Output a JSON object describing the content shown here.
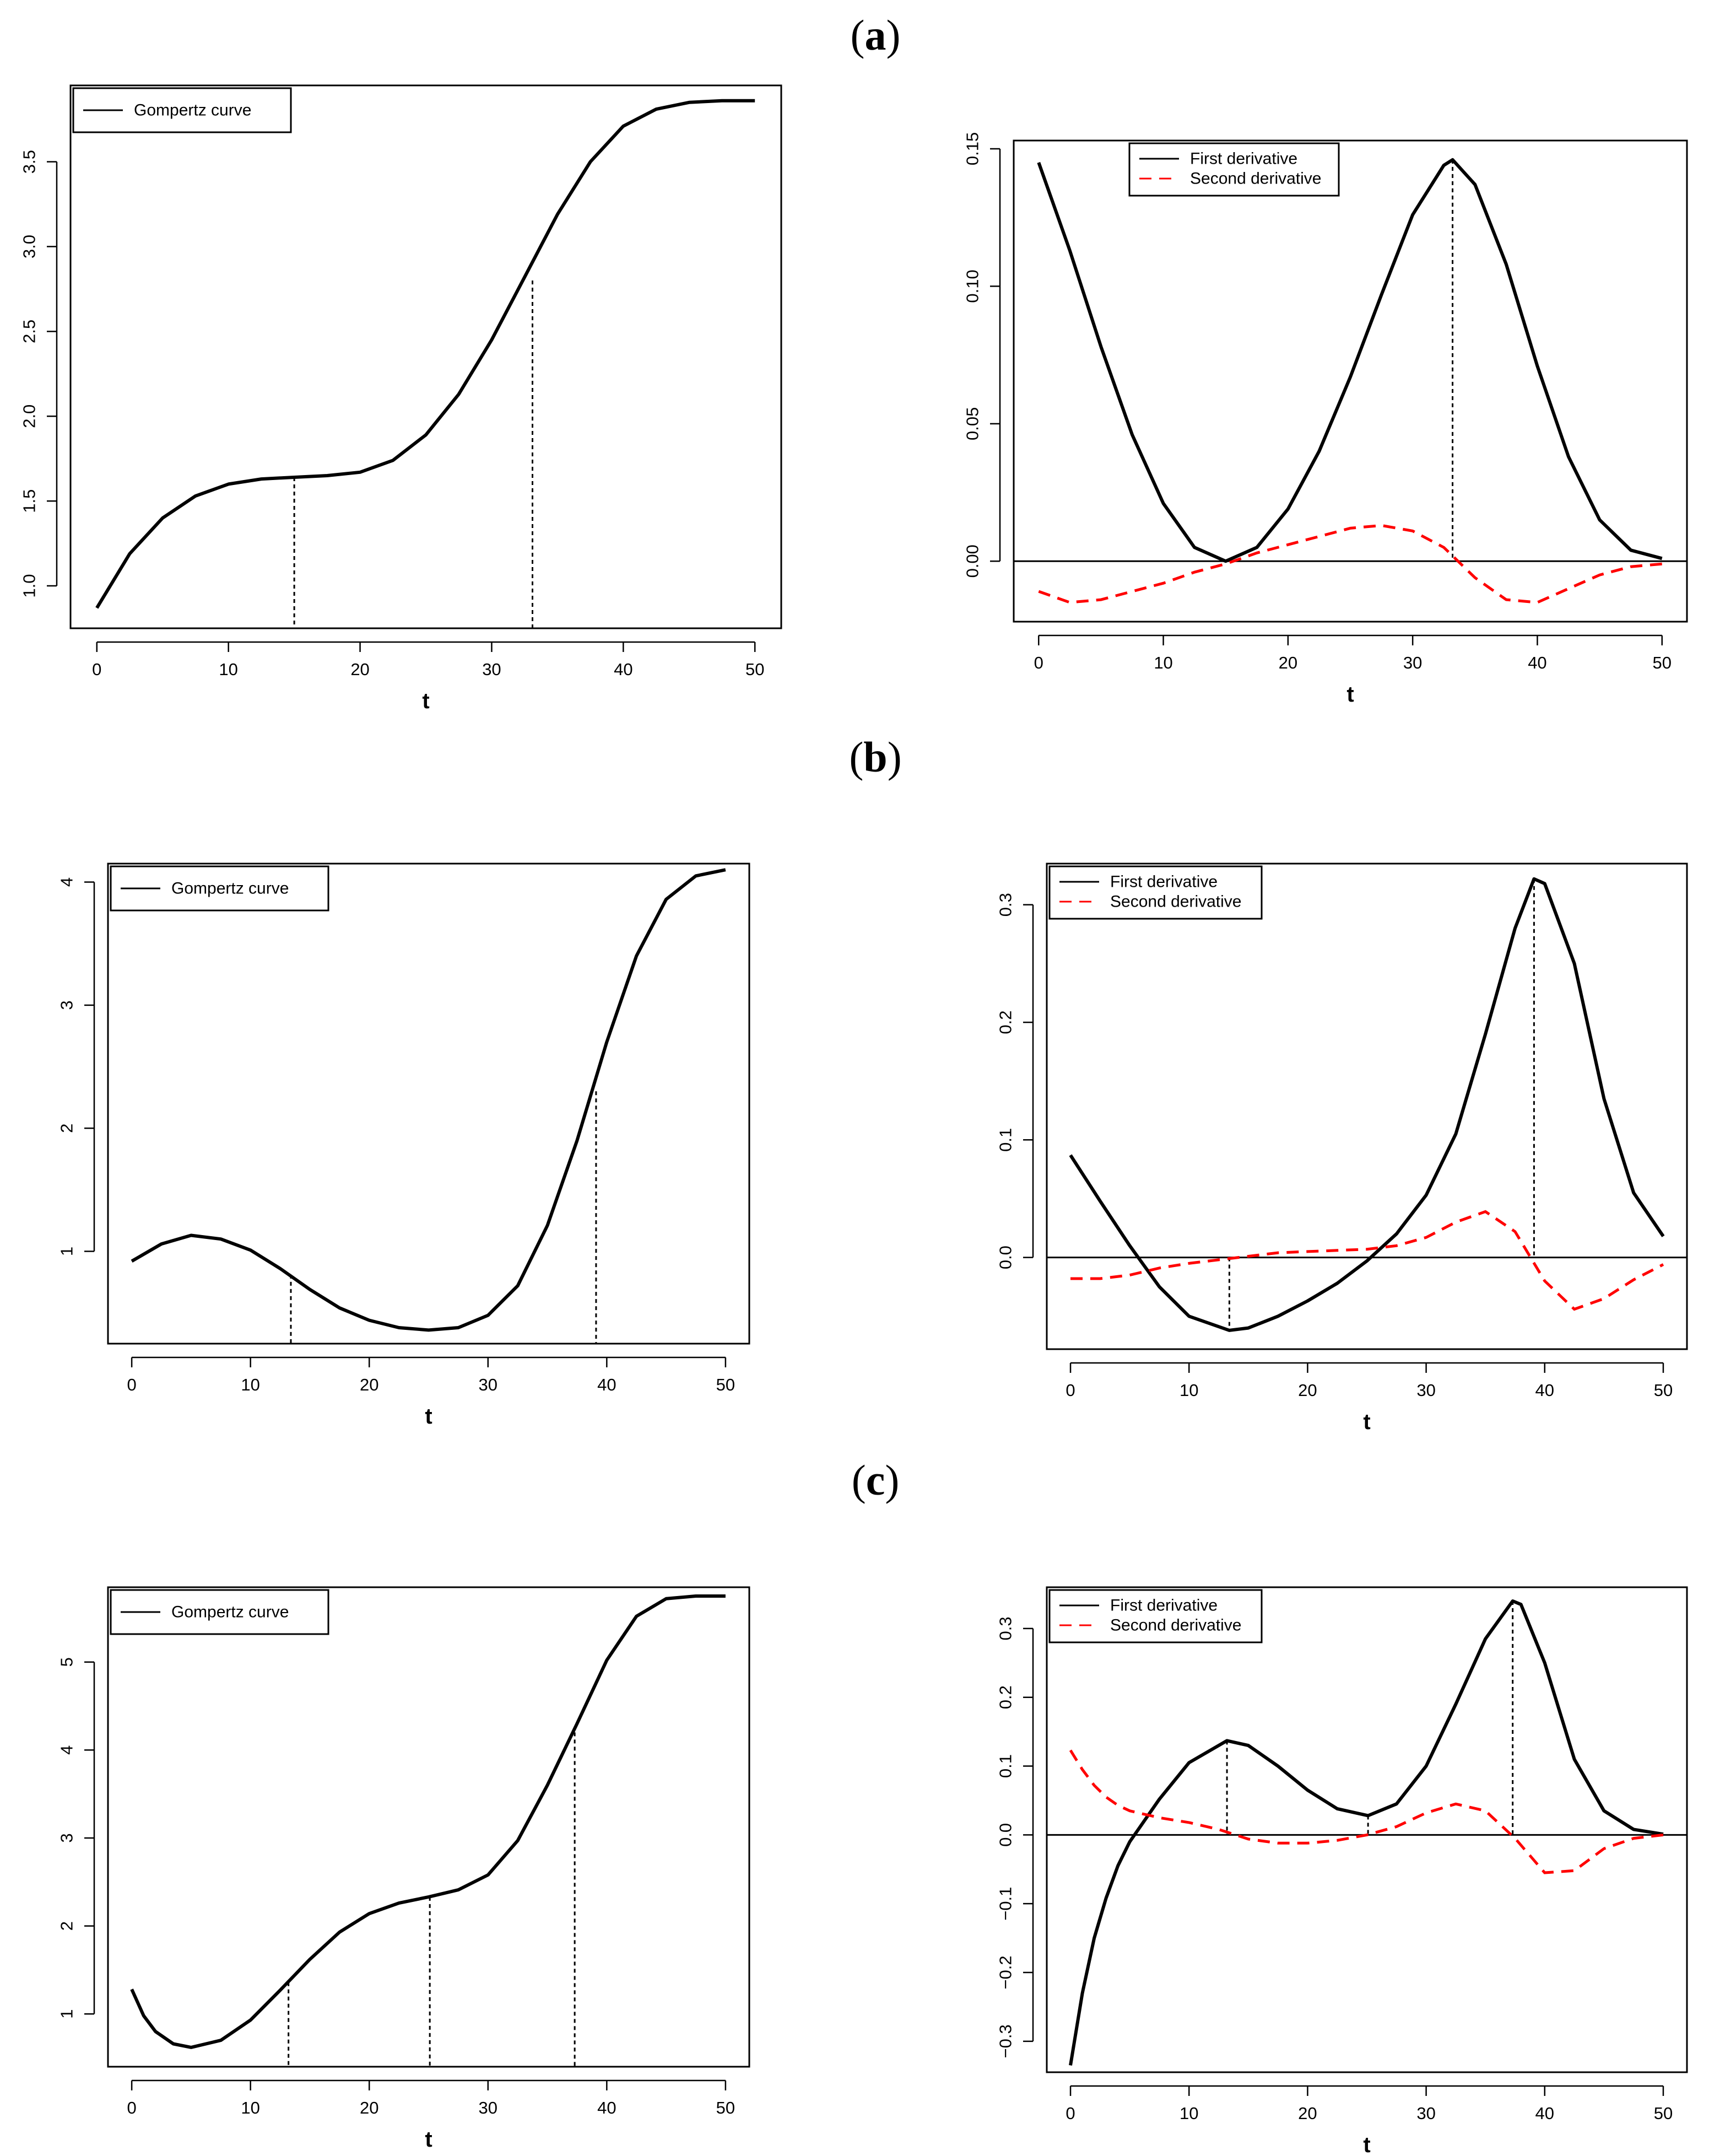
{
  "panel_labels": [
    {
      "open": "(",
      "letter": "a",
      "close": ")"
    },
    {
      "open": "(",
      "letter": "b",
      "close": ")"
    },
    {
      "open": "(",
      "letter": "c",
      "close": ")"
    }
  ],
  "chart_data": [
    {
      "id": "a-left",
      "type": "line",
      "panel": "a",
      "xlabel": "t",
      "ylabel": "",
      "xlim": [
        0,
        50
      ],
      "ylim": [
        0.75,
        3.95
      ],
      "xticks": [
        0,
        10,
        20,
        30,
        40,
        50
      ],
      "yticks": [
        1.0,
        1.5,
        2.0,
        2.5,
        3.0,
        3.5
      ],
      "ytick_labels": [
        "1.0",
        "1.5",
        "2.0",
        "2.5",
        "3.0",
        "3.5"
      ],
      "legend": {
        "position": "top-left",
        "entries": [
          {
            "label": "Gompertz curve",
            "style": "solid-black"
          }
        ]
      },
      "series": [
        {
          "name": "Gompertz curve",
          "style": "solid-black",
          "x": [
            0,
            2.5,
            5,
            7.5,
            10,
            12.5,
            15,
            17.5,
            20,
            22.5,
            25,
            27.5,
            30,
            32.5,
            35,
            37.5,
            40,
            42.5,
            45,
            47.5,
            50
          ],
          "y": [
            0.87,
            1.19,
            1.4,
            1.53,
            1.6,
            1.63,
            1.64,
            1.65,
            1.67,
            1.74,
            1.89,
            2.13,
            2.45,
            2.82,
            3.19,
            3.5,
            3.71,
            3.81,
            3.85,
            3.86,
            3.86
          ]
        }
      ],
      "vlines": [
        {
          "x": 15,
          "y": 1.64
        },
        {
          "x": 33.1,
          "y": 2.8
        }
      ],
      "zero_line": false
    },
    {
      "id": "a-right",
      "type": "line",
      "panel": "a",
      "xlabel": "t",
      "ylabel": "",
      "xlim": [
        0,
        50
      ],
      "ylim": [
        -0.022,
        0.153
      ],
      "xticks": [
        0,
        10,
        20,
        30,
        40,
        50
      ],
      "yticks": [
        0.0,
        0.05,
        0.1,
        0.15
      ],
      "ytick_labels": [
        "0.00",
        "0.05",
        "0.10",
        "0.15"
      ],
      "legend": {
        "position": "top-left",
        "entries": [
          {
            "label": "First derivative",
            "style": "solid-black"
          },
          {
            "label": "Second derivative",
            "style": "dashed-red"
          }
        ]
      },
      "series": [
        {
          "name": "First derivative",
          "style": "solid-black",
          "x": [
            0,
            2.5,
            5,
            7.5,
            10,
            12.5,
            15,
            17.5,
            20,
            22.5,
            25,
            27.5,
            30,
            32.5,
            33.2,
            35,
            37.5,
            40,
            42.5,
            45,
            47.5,
            50
          ],
          "y": [
            0.145,
            0.113,
            0.078,
            0.046,
            0.021,
            0.005,
            0.0,
            0.005,
            0.019,
            0.04,
            0.067,
            0.097,
            0.126,
            0.144,
            0.146,
            0.137,
            0.108,
            0.071,
            0.038,
            0.015,
            0.004,
            0.001
          ]
        },
        {
          "name": "Second derivative",
          "style": "dashed-red",
          "x": [
            0,
            2.5,
            5,
            7.5,
            10,
            12.5,
            15,
            17.5,
            20,
            22.5,
            25,
            27.5,
            30,
            32.5,
            35,
            37.5,
            40,
            42.5,
            45,
            47.5,
            50
          ],
          "y": [
            -0.011,
            -0.015,
            -0.014,
            -0.011,
            -0.008,
            -0.004,
            -0.001,
            0.003,
            0.006,
            0.009,
            0.012,
            0.013,
            0.011,
            0.005,
            -0.006,
            -0.014,
            -0.015,
            -0.01,
            -0.005,
            -0.002,
            -0.001
          ]
        }
      ],
      "vlines": [
        {
          "x": 33.2,
          "y": 0.146
        }
      ],
      "zero_line": true
    },
    {
      "id": "b-left",
      "type": "line",
      "panel": "b",
      "xlabel": "t",
      "ylabel": "",
      "xlim": [
        0,
        50
      ],
      "ylim": [
        0.25,
        4.15
      ],
      "xticks": [
        0,
        10,
        20,
        30,
        40,
        50
      ],
      "yticks": [
        1,
        2,
        3,
        4
      ],
      "ytick_labels": [
        "1",
        "2",
        "3",
        "4"
      ],
      "legend": {
        "position": "top-left",
        "entries": [
          {
            "label": "Gompertz curve",
            "style": "solid-black"
          }
        ]
      },
      "series": [
        {
          "name": "Gompertz curve",
          "style": "solid-black",
          "x": [
            0,
            2.5,
            5,
            7.5,
            10,
            12.5,
            15,
            17.5,
            20,
            22.5,
            25,
            27.5,
            30,
            32.5,
            35,
            37.5,
            40,
            42.5,
            45,
            47.5,
            50
          ],
          "y": [
            0.92,
            1.06,
            1.13,
            1.1,
            1.01,
            0.86,
            0.69,
            0.54,
            0.44,
            0.38,
            0.36,
            0.38,
            0.48,
            0.72,
            1.21,
            1.9,
            2.7,
            3.4,
            3.86,
            4.05,
            4.1
          ]
        }
      ],
      "vlines": [
        {
          "x": 13.4,
          "y": 0.81
        },
        {
          "x": 39.1,
          "y": 2.3
        }
      ],
      "zero_line": false
    },
    {
      "id": "b-right",
      "type": "line",
      "panel": "b",
      "xlabel": "t",
      "ylabel": "",
      "xlim": [
        0,
        50
      ],
      "ylim": [
        -0.078,
        0.335
      ],
      "xticks": [
        0,
        10,
        20,
        30,
        40,
        50
      ],
      "yticks": [
        0.0,
        0.1,
        0.2,
        0.3
      ],
      "ytick_labels": [
        "0.0",
        "0.1",
        "0.2",
        "0.3"
      ],
      "legend": {
        "position": "top-left",
        "entries": [
          {
            "label": "First derivative",
            "style": "solid-black"
          },
          {
            "label": "Second derivative",
            "style": "dashed-red"
          }
        ]
      },
      "series": [
        {
          "name": "First derivative",
          "style": "solid-black",
          "x": [
            0,
            2.5,
            5,
            7.5,
            10,
            13.4,
            15,
            17.5,
            20,
            22.5,
            25,
            27.5,
            30,
            32.5,
            35,
            37.5,
            39.1,
            40,
            42.5,
            45,
            47.5,
            50
          ],
          "y": [
            0.087,
            0.048,
            0.01,
            -0.025,
            -0.05,
            -0.062,
            -0.06,
            -0.05,
            -0.037,
            -0.022,
            -0.003,
            0.02,
            0.053,
            0.105,
            0.19,
            0.28,
            0.322,
            0.318,
            0.25,
            0.135,
            0.055,
            0.018
          ]
        },
        {
          "name": "Second derivative",
          "style": "dashed-red",
          "x": [
            0,
            2.5,
            5,
            7.5,
            10,
            12.5,
            15,
            17.5,
            20,
            22.5,
            25,
            27.5,
            30,
            32.5,
            35,
            37.5,
            40,
            42.5,
            45,
            47.5,
            50
          ],
          "y": [
            -0.018,
            -0.018,
            -0.015,
            -0.009,
            -0.005,
            -0.002,
            0.001,
            0.004,
            0.005,
            0.006,
            0.007,
            0.01,
            0.017,
            0.03,
            0.039,
            0.022,
            -0.02,
            -0.044,
            -0.035,
            -0.019,
            -0.006
          ]
        }
      ],
      "vlines": [
        {
          "x": 13.4,
          "y": -0.062
        },
        {
          "x": 39.1,
          "y": 0.322
        }
      ],
      "zero_line": true
    },
    {
      "id": "c-left",
      "type": "line",
      "panel": "c",
      "xlabel": "t",
      "ylabel": "",
      "xlim": [
        0,
        50
      ],
      "ylim": [
        0.4,
        5.85
      ],
      "xticks": [
        0,
        10,
        20,
        30,
        40,
        50
      ],
      "yticks": [
        1,
        2,
        3,
        4,
        5
      ],
      "ytick_labels": [
        "1",
        "2",
        "3",
        "4",
        "5"
      ],
      "legend": {
        "position": "top-left",
        "entries": [
          {
            "label": "Gompertz curve",
            "style": "solid-black"
          }
        ]
      },
      "series": [
        {
          "name": "Gompertz curve",
          "style": "solid-black",
          "x": [
            0,
            1,
            2,
            3.5,
            5,
            7.5,
            10,
            12.5,
            15,
            17.5,
            20,
            22.5,
            25,
            27.5,
            30,
            32.5,
            35,
            37.5,
            40,
            42.5,
            45,
            47.5,
            50
          ],
          "y": [
            1.28,
            0.98,
            0.8,
            0.66,
            0.62,
            0.7,
            0.93,
            1.27,
            1.62,
            1.93,
            2.14,
            2.26,
            2.33,
            2.41,
            2.58,
            2.97,
            3.6,
            4.3,
            5.02,
            5.52,
            5.72,
            5.75,
            5.75
          ]
        }
      ],
      "vlines": [
        {
          "x": 13.2,
          "y": 1.36
        },
        {
          "x": 25.1,
          "y": 2.33
        },
        {
          "x": 37.3,
          "y": 4.2
        }
      ],
      "zero_line": false
    },
    {
      "id": "c-right",
      "type": "line",
      "panel": "c",
      "xlabel": "t",
      "ylabel": "",
      "xlim": [
        0,
        50
      ],
      "ylim": [
        -0.345,
        0.36
      ],
      "xticks": [
        0,
        10,
        20,
        30,
        40,
        50
      ],
      "yticks": [
        -0.3,
        -0.2,
        -0.1,
        0.0,
        0.1,
        0.2,
        0.3
      ],
      "ytick_labels": [
        "−0.3",
        "−0.2",
        "−0.1",
        "0.0",
        "0.1",
        "0.2",
        "0.3"
      ],
      "legend": {
        "position": "top-left",
        "entries": [
          {
            "label": "First derivative",
            "style": "solid-black"
          },
          {
            "label": "Second derivative",
            "style": "dashed-red"
          }
        ]
      },
      "series": [
        {
          "name": "First derivative",
          "style": "solid-black",
          "x": [
            0,
            1,
            2,
            3,
            4,
            5,
            7.5,
            10,
            13.2,
            15,
            17.5,
            20,
            22.5,
            25.1,
            27.5,
            30,
            32.5,
            35,
            37.3,
            38,
            40,
            42.5,
            45,
            47.5,
            50
          ],
          "y": [
            -0.335,
            -0.23,
            -0.15,
            -0.092,
            -0.045,
            -0.01,
            0.052,
            0.105,
            0.137,
            0.13,
            0.1,
            0.065,
            0.038,
            0.028,
            0.045,
            0.1,
            0.19,
            0.285,
            0.34,
            0.335,
            0.25,
            0.11,
            0.035,
            0.008,
            0.001
          ]
        },
        {
          "name": "Second derivative",
          "style": "dashed-red",
          "x": [
            0,
            1,
            2,
            3,
            4,
            5,
            7.5,
            10,
            12.5,
            15,
            17.5,
            20,
            22.5,
            25,
            27.5,
            30,
            32.5,
            35,
            37.5,
            40,
            42.5,
            45,
            47.5,
            50
          ],
          "y": [
            0.123,
            0.095,
            0.072,
            0.055,
            0.043,
            0.035,
            0.025,
            0.018,
            0.008,
            -0.006,
            -0.012,
            -0.012,
            -0.008,
            0.0,
            0.012,
            0.032,
            0.045,
            0.035,
            -0.005,
            -0.055,
            -0.052,
            -0.02,
            -0.005,
            0.0
          ]
        }
      ],
      "vlines": [
        {
          "x": 13.2,
          "y": 0.137
        },
        {
          "x": 25.1,
          "y": 0.028
        },
        {
          "x": 37.3,
          "y": 0.34
        }
      ],
      "zero_line": true
    }
  ]
}
